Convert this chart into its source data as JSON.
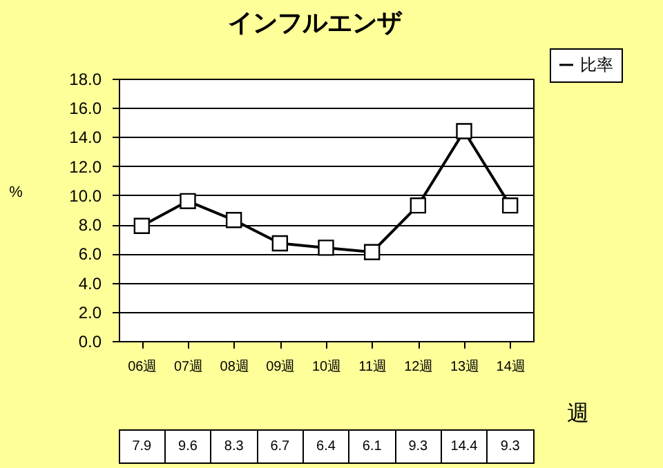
{
  "chart_data": {
    "type": "line",
    "title": "インフルエンザ",
    "ylabel": "%",
    "xlabel": "週",
    "categories": [
      "06週",
      "07週",
      "08週",
      "09週",
      "10週",
      "11週",
      "12週",
      "13週",
      "14週"
    ],
    "series": [
      {
        "name": "比率",
        "color": "#000000",
        "values": [
          7.9,
          9.6,
          8.3,
          6.7,
          6.4,
          6.1,
          9.3,
          14.4,
          9.3
        ]
      }
    ],
    "ylim": [
      0,
      18
    ],
    "yticks": [
      {
        "value": 0,
        "label": "0.0"
      },
      {
        "value": 2,
        "label": "2.0"
      },
      {
        "value": 4,
        "label": "4.0"
      },
      {
        "value": 6,
        "label": "6.0"
      },
      {
        "value": 8,
        "label": "8.0"
      },
      {
        "value": 10,
        "label": "10.0"
      },
      {
        "value": 12,
        "label": "12.0"
      },
      {
        "value": 14,
        "label": "14.0"
      },
      {
        "value": 16,
        "label": "16.0"
      },
      {
        "value": 18,
        "label": "18.0"
      }
    ],
    "grid": "y",
    "legend": "top right",
    "marker": "square",
    "line_style": "solid",
    "data_labels": true
  }
}
